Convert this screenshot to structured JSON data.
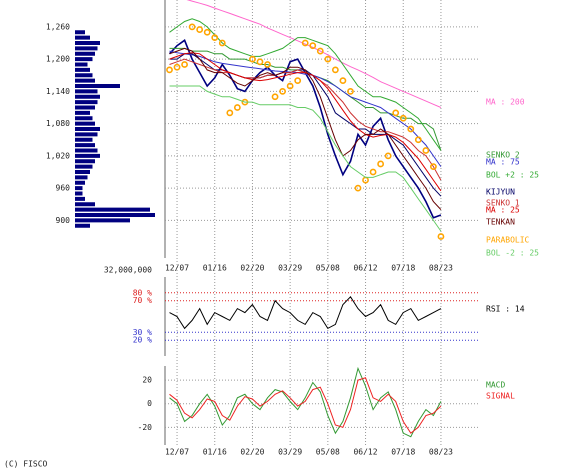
{
  "chart_data": [
    {
      "type": "line",
      "panel": "price",
      "categories": [
        null,
        "12/07",
        null,
        null,
        null,
        null,
        "01/16",
        null,
        null,
        null,
        null,
        "02/20",
        null,
        null,
        null,
        null,
        "03/29",
        null,
        null,
        null,
        null,
        "05/08",
        null,
        null,
        null,
        null,
        "06/12",
        null,
        null,
        null,
        null,
        "07/18",
        null,
        null,
        null,
        null,
        "08/23"
      ],
      "ylim": [
        830,
        1310
      ],
      "yticks": [
        {
          "value": 1260,
          "label": "1,260"
        },
        {
          "value": 1200,
          "label": "1,200"
        },
        {
          "value": 1140,
          "label": "1,140"
        },
        {
          "value": 1080,
          "label": "1,080"
        },
        {
          "value": 1020,
          "label": "1,020"
        },
        960,
        900
      ],
      "grid": true,
      "series": [
        {
          "color": "#000080",
          "values": [
            1210,
            1225,
            1235,
            1200,
            1175,
            1150,
            1165,
            1190,
            1170,
            1145,
            1140,
            1160,
            1175,
            1185,
            1170,
            1160,
            1195,
            1200,
            1175,
            1150,
            1110,
            1060,
            1020,
            985,
            1010,
            1060,
            1040,
            1075,
            1090,
            1050,
            1020,
            1000,
            980,
            960,
            935,
            905,
            910
          ]
        },
        {
          "name": "MA : 200",
          "color": "#ff66cc",
          "values": [
            1320,
            1316,
            1312,
            1308,
            1304,
            1300,
            1295,
            1290,
            1285,
            1280,
            1275,
            1270,
            1265,
            1258,
            1252,
            1246,
            1240,
            1234,
            1228,
            1222,
            1215,
            1208,
            1200,
            1193,
            1186,
            1180,
            1173,
            1166,
            1158,
            1152,
            1146,
            1140,
            1134,
            1128,
            1122,
            1116,
            1110
          ]
        },
        {
          "name": "SENKO 2",
          "color": "#339933",
          "values": [
            1220,
            1220,
            1220,
            1215,
            1215,
            1215,
            1210,
            1210,
            1200,
            1200,
            1200,
            1195,
            1190,
            1190,
            1185,
            1185,
            1180,
            1180,
            1175,
            1170,
            1165,
            1160,
            1150,
            1140,
            1130,
            1120,
            1110,
            1110,
            1100,
            1100,
            1095,
            1090,
            1090,
            1080,
            1080,
            1070,
            1030
          ]
        },
        {
          "name": "MA : 75",
          "color": "#3333cc",
          "values": [
            1215,
            1212,
            1210,
            1208,
            1205,
            1200,
            1195,
            1192,
            1190,
            1188,
            1186,
            1184,
            1182,
            1180,
            1178,
            1177,
            1176,
            1175,
            1172,
            1170,
            1165,
            1158,
            1150,
            1140,
            1130,
            1125,
            1120,
            1115,
            1110,
            1100,
            1090,
            1080,
            1070,
            1055,
            1040,
            1020,
            1000
          ]
        },
        {
          "name": "BOL +2 : 25",
          "color": "#33aa33",
          "values": [
            1250,
            1260,
            1270,
            1275,
            1270,
            1260,
            1245,
            1230,
            1220,
            1215,
            1210,
            1205,
            1205,
            1210,
            1215,
            1220,
            1230,
            1240,
            1240,
            1235,
            1230,
            1225,
            1210,
            1190,
            1170,
            1150,
            1140,
            1130,
            1130,
            1125,
            1120,
            1110,
            1100,
            1090,
            1070,
            1050,
            1030
          ]
        },
        {
          "name": "KIJYUN",
          "color": "#000066",
          "values": [
            1200,
            1200,
            1210,
            1210,
            1200,
            1190,
            1180,
            1180,
            1175,
            1170,
            1165,
            1165,
            1165,
            1170,
            1170,
            1175,
            1175,
            1180,
            1180,
            1170,
            1150,
            1130,
            1100,
            1090,
            1080,
            1070,
            1070,
            1060,
            1060,
            1060,
            1050,
            1040,
            1020,
            1000,
            980,
            960,
            945
          ]
        },
        {
          "name": "SENKO 1",
          "color": "#cc3333",
          "values": [
            1190,
            1195,
            1200,
            1195,
            1190,
            1185,
            1180,
            1175,
            1175,
            1170,
            1165,
            1165,
            1165,
            1170,
            1170,
            1175,
            1175,
            1180,
            1175,
            1170,
            1160,
            1150,
            1135,
            1120,
            1100,
            1085,
            1075,
            1070,
            1065,
            1065,
            1060,
            1055,
            1045,
            1030,
            1020,
            1000,
            975
          ]
        },
        {
          "name": "MA : 25",
          "color": "#dd0000",
          "values": [
            1200,
            1205,
            1210,
            1212,
            1210,
            1200,
            1190,
            1180,
            1175,
            1170,
            1165,
            1162,
            1160,
            1162,
            1165,
            1168,
            1172,
            1175,
            1175,
            1170,
            1160,
            1145,
            1125,
            1105,
            1085,
            1070,
            1060,
            1055,
            1058,
            1060,
            1055,
            1045,
            1030,
            1015,
            995,
            975,
            955
          ]
        },
        {
          "name": "TENKAN",
          "color": "#660000",
          "values": [
            1210,
            1215,
            1220,
            1215,
            1200,
            1180,
            1175,
            1175,
            1165,
            1155,
            1150,
            1160,
            1170,
            1175,
            1170,
            1175,
            1185,
            1185,
            1180,
            1160,
            1130,
            1090,
            1050,
            1020,
            1030,
            1050,
            1060,
            1060,
            1070,
            1060,
            1040,
            1020,
            1000,
            980,
            960,
            935,
            920
          ]
        },
        {
          "name": "PARABOLIC",
          "color": "#ffa500",
          "style": "dots",
          "values": [
            1180,
            1185,
            1190,
            1260,
            1255,
            1250,
            1240,
            1230,
            1100,
            1110,
            1120,
            1200,
            1195,
            1190,
            1130,
            1140,
            1150,
            1160,
            1230,
            1225,
            1215,
            1200,
            1180,
            1160,
            1140,
            960,
            975,
            990,
            1005,
            1020,
            1100,
            1090,
            1070,
            1050,
            1030,
            1000,
            870
          ]
        },
        {
          "name": "BOL -2 : 25",
          "color": "#66cc66",
          "values": [
            1150,
            1150,
            1150,
            1150,
            1150,
            1140,
            1135,
            1130,
            1130,
            1125,
            1120,
            1120,
            1115,
            1115,
            1115,
            1115,
            1115,
            1110,
            1110,
            1105,
            1090,
            1065,
            1040,
            1020,
            1000,
            990,
            980,
            980,
            985,
            990,
            990,
            980,
            960,
            940,
            920,
            900,
            880
          ]
        }
      ],
      "volume_profile": {
        "color": "#000080",
        "scale": {
          "value": 32000000,
          "label": "32,000,000"
        },
        "prices": [
          890,
          900,
          910,
          920,
          930,
          940,
          950,
          960,
          970,
          980,
          990,
          1000,
          1010,
          1020,
          1030,
          1040,
          1050,
          1060,
          1070,
          1080,
          1090,
          1100,
          1110,
          1120,
          1130,
          1140,
          1150,
          1160,
          1170,
          1180,
          1190,
          1200,
          1210,
          1220,
          1230,
          1240,
          1250
        ],
        "values": [
          6000000,
          22000000,
          32000000,
          30000000,
          8000000,
          4000000,
          3000000,
          3000000,
          4000000,
          5000000,
          6000000,
          7000000,
          8000000,
          10000000,
          9000000,
          8000000,
          7000000,
          9000000,
          10000000,
          8000000,
          7000000,
          6000000,
          8000000,
          9000000,
          10000000,
          9000000,
          18000000,
          8000000,
          7000000,
          6000000,
          5000000,
          7000000,
          8000000,
          9000000,
          10000000,
          6000000,
          4000000
        ]
      }
    },
    {
      "type": "line",
      "panel": "rsi",
      "ylim": [
        0,
        100
      ],
      "yticks": [
        {
          "value": 80,
          "label": "80 %"
        },
        {
          "value": 70,
          "label": "70 %"
        },
        {
          "value": 30,
          "label": "30 %"
        },
        {
          "value": 20,
          "label": "20 %"
        }
      ],
      "grid": true,
      "series": [
        {
          "name": "RSI : 14",
          "color": "#000000",
          "values": [
            55,
            50,
            35,
            45,
            60,
            40,
            55,
            50,
            45,
            60,
            55,
            65,
            50,
            45,
            70,
            60,
            55,
            45,
            40,
            55,
            50,
            35,
            40,
            65,
            75,
            60,
            50,
            55,
            65,
            45,
            40,
            55,
            60,
            45,
            50,
            55,
            60
          ]
        }
      ]
    },
    {
      "type": "line",
      "panel": "macd",
      "ylim": [
        -35,
        32
      ],
      "yticks": [
        20,
        0,
        -20
      ],
      "grid": true,
      "series": [
        {
          "name": "MACD",
          "color": "#339933",
          "values": [
            5,
            0,
            -15,
            -10,
            0,
            8,
            -2,
            -18,
            -10,
            5,
            8,
            0,
            -5,
            5,
            12,
            10,
            2,
            -5,
            5,
            18,
            10,
            -10,
            -25,
            -15,
            5,
            30,
            15,
            -5,
            5,
            10,
            -5,
            -25,
            -28,
            -15,
            -5,
            -10,
            2
          ]
        },
        {
          "name": "SIGNAL",
          "color": "#ee2222",
          "values": [
            8,
            3,
            -8,
            -12,
            -5,
            4,
            2,
            -10,
            -14,
            -2,
            6,
            4,
            -2,
            2,
            8,
            11,
            5,
            -2,
            2,
            12,
            14,
            0,
            -18,
            -20,
            -5,
            20,
            22,
            5,
            2,
            8,
            2,
            -15,
            -25,
            -20,
            -10,
            -8,
            -2
          ]
        }
      ]
    }
  ],
  "footer": "(C) FISCO"
}
